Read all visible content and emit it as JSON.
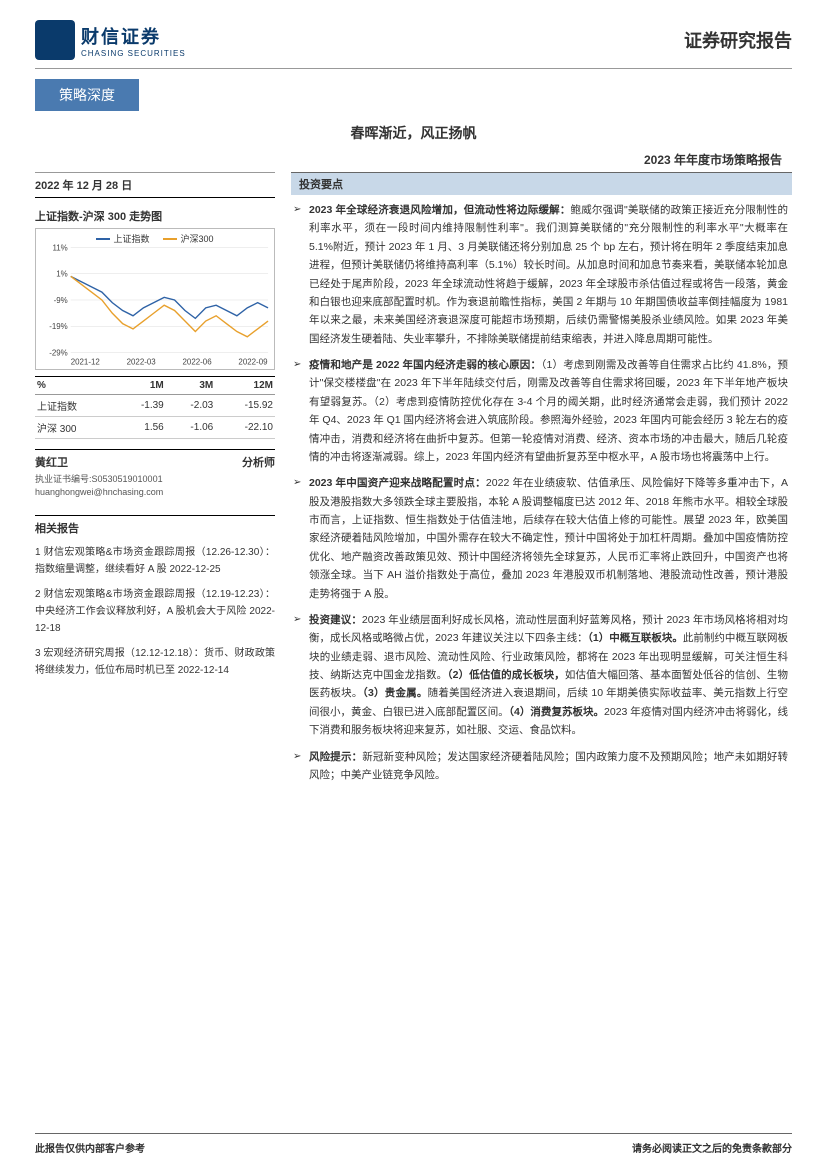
{
  "header": {
    "company_cn": "财信证券",
    "company_en": "CHASING SECURITIES",
    "doc_type": "证券研究报告"
  },
  "ribbon": "策略深度",
  "titles": {
    "main": "春晖渐近，风正扬帆",
    "sub": "2023 年年度市场策略报告"
  },
  "left": {
    "date": "2022 年 12 月 28 日",
    "chart": {
      "title": "上证指数-沪深 300 走势图",
      "series": [
        {
          "name": "上证指数",
          "color": "#2e62a6"
        },
        {
          "name": "沪深300",
          "color": "#e8a02c"
        }
      ],
      "ylabels": [
        "11%",
        "1%",
        "-9%",
        "-19%",
        "-29%"
      ],
      "xlabels": [
        "2021-12",
        "2022-03",
        "2022-06",
        "2022-09"
      ],
      "ylim": [
        -29,
        11
      ],
      "line1": [
        0,
        -2,
        -4,
        -6,
        -10,
        -13,
        -15,
        -12,
        -10,
        -8,
        -9,
        -13,
        -16,
        -12,
        -11,
        -13,
        -15,
        -12,
        -10,
        -12
      ],
      "line2": [
        0,
        -3,
        -6,
        -9,
        -14,
        -18,
        -20,
        -17,
        -14,
        -11,
        -13,
        -17,
        -21,
        -17,
        -15,
        -18,
        -21,
        -23,
        -20,
        -17
      ],
      "grid_color": "#dddddd",
      "background": "#ffffff"
    },
    "perf": {
      "headers": [
        "%",
        "1M",
        "3M",
        "12M"
      ],
      "rows": [
        [
          "上证指数",
          "-1.39",
          "-2.03",
          "-15.92"
        ],
        [
          "沪深 300",
          "1.56",
          "-1.06",
          "-22.10"
        ]
      ]
    },
    "analyst": {
      "name": "黄红卫",
      "role": "分析师",
      "cert": "执业证书编号:S0530519010001",
      "email": "huanghongwei@hnchasing.com"
    },
    "related": {
      "heading": "相关报告",
      "items": [
        "1 财信宏观策略&市场资金跟踪周报（12.26-12.30）：指数缩量调整，继续看好 A 股 2022-12-25",
        "2 财信宏观策略&市场资金跟踪周报（12.19-12.23）：中央经济工作会议释放利好，A 股机会大于风险 2022-12-18",
        "3 宏观经济研究周报（12.12-12.18）：货币、财政政策将继续发力，低位布局时机已至 2022-12-14"
      ]
    }
  },
  "right": {
    "heading": "投资要点",
    "points": [
      "<b>2023 年全球经济衰退风险增加，但流动性将边际缓解：</b>鲍威尔强调\"美联储的政策正接近充分限制性的利率水平，须在一段时间内维持限制性利率\"。我们测算美联储的\"充分限制性的利率水平\"大概率在 5.1%附近，预计 2023 年 1 月、3 月美联储还将分别加息 25 个 bp 左右，预计将在明年 2 季度结束加息进程，但预计美联储仍将维持高利率（5.1%）较长时间。从加息时间和加息节奏来看，美联储本轮加息已经处于尾声阶段，2023 年全球流动性将趋于缓解，2023 年全球股市杀估值过程或将告一段落，黄金和白银也迎来底部配置时机。作为衰退前瞻性指标，美国 2 年期与 10 年期国债收益率倒挂幅度为 1981 年以来之最，未来美国经济衰退深度可能超市场预期，后续仍需警惕美股杀业绩风险。如果 2023 年美国经济发生硬着陆、失业率攀升，不排除美联储提前结束缩表，并进入降息周期可能性。",
      "<b>疫情和地产是 2022 年国内经济走弱的核心原因：</b>（1）考虑到刚需及改善等自住需求占比约 41.8%，预计\"保交楼楼盘\"在 2023 年下半年陆续交付后，刚需及改善等自住需求将回暖，2023 年下半年地产板块有望弱复苏。（2）考虑到疫情防控优化存在 3-4 个月的阈关期，此时经济通常会走弱，我们预计 2022 年 Q4、2023 年 Q1 国内经济将会进入筑底阶段。参照海外经验，2023 年国内可能会经历 3 轮左右的疫情冲击，消费和经济将在曲折中复苏。但第一轮疫情对消费、经济、资本市场的冲击最大，随后几轮疫情的冲击将逐渐减弱。综上，2023 年国内经济有望曲折复苏至中枢水平，A 股市场也将震荡中上行。",
      "<b>2023 年中国资产迎来战略配置时点：</b>2022 年在业绩疲软、估值承压、风险偏好下降等多重冲击下，A 股及港股指数大多领跌全球主要股指，本轮 A 股调整幅度已达 2012 年、2018 年熊市水平。相较全球股市而言，上证指数、恒生指数处于估值洼地，后续存在较大估值上修的可能性。展望 2023 年，欧美国家经济硬着陆风险增加，中国外需存在较大不确定性，预计中国将处于加杠杆周期。叠加中国疫情防控优化、地产融资改善政策见效、预计中国经济将领先全球复苏，人民币汇率将止跌回升，中国资产也将领涨全球。当下 AH 溢价指数处于高位，叠加 2023 年港股双币机制落地、港股流动性改善，预计港股走势将强于 A 股。",
      "<b>投资建议：</b>2023 年业绩层面利好成长风格，流动性层面利好蓝筹风格，预计 2023 年市场风格将相对均衡，成长风格或略微占优，2023 年建议关注以下四条主线：<b>（1）中概互联板块。</b>此前制约中概互联网板块的业绩走弱、退市风险、流动性风险、行业政策风险，都将在 2023 年出现明显缓解，可关注恒生科技、纳斯达克中国金龙指数。<b>（2）低估值的成长板块，</b>如估值大幅回落、基本面暂处低谷的信创、生物医药板块。<b>（3）贵金属。</b>随着美国经济进入衰退期间，后续 10 年期美债实际收益率、美元指数上行空间很小，黄金、白银已进入底部配置区间。<b>（4）消费复苏板块。</b>2023 年疫情对国内经济冲击将弱化，线下消费和服务板块将迎来复苏，如社服、交运、食品饮料。",
      "<b>风险提示：</b>新冠新变种风险；发达国家经济硬着陆风险；国内政策力度不及预期风险；地产未如期好转风险；中美产业链竞争风险。"
    ]
  },
  "footer": {
    "left": "此报告仅供内部客户参考",
    "right": "请务必阅读正文之后的免责条款部分"
  }
}
